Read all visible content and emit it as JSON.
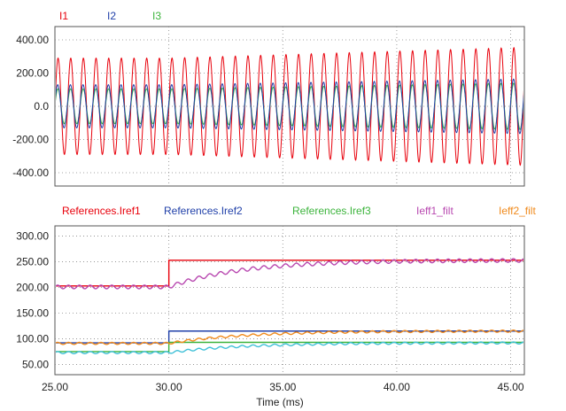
{
  "chart_data": [
    {
      "type": "line",
      "title": "",
      "xlabel": "",
      "ylabel": "",
      "xlim": [
        25,
        45.6
      ],
      "ylim": [
        -480,
        480
      ],
      "yticks": [
        "400.00",
        "200.00",
        "0.0",
        "-200.00",
        "-400.00"
      ],
      "ytick_values": [
        400,
        200,
        0,
        -200,
        -400
      ],
      "xticks": [],
      "xgrid_values": [
        30,
        35,
        40,
        45
      ],
      "grid": true,
      "legend_position": "top-left",
      "signal_frequency_hz": 1800,
      "series": [
        {
          "name": "I1",
          "color": "#e8000b",
          "kind": "sine",
          "amplitude_before": 290,
          "amplitude_after": 355,
          "phase_deg": 0
        },
        {
          "name": "I2",
          "color": "#1f3fa8",
          "kind": "sine",
          "amplitude_before": 130,
          "amplitude_after": 165,
          "phase_deg": 10
        },
        {
          "name": "I3",
          "color": "#3cb43c",
          "kind": "sine",
          "amplitude_before": 105,
          "amplitude_after": 140,
          "phase_deg": 5
        }
      ]
    },
    {
      "type": "line",
      "title": "",
      "xlabel": "Time (ms)",
      "ylabel": "",
      "xlim": [
        25,
        45.6
      ],
      "ylim": [
        30,
        320
      ],
      "yticks": [
        "300.00",
        "250.00",
        "200.00",
        "150.00",
        "100.00",
        "50.00"
      ],
      "ytick_values": [
        300,
        250,
        200,
        150,
        100,
        50
      ],
      "xticks": [
        "25.00",
        "30.00",
        "35.00",
        "40.00",
        "45.00"
      ],
      "xtick_values": [
        25,
        30,
        35,
        40,
        45
      ],
      "grid": true,
      "legend_position": "top",
      "step_time": 30,
      "series": [
        {
          "name": "References.Iref1",
          "color": "#e8000b",
          "kind": "step",
          "before": 203,
          "after": 253
        },
        {
          "name": "References.Iref2",
          "color": "#1f3fa8",
          "kind": "step",
          "before": 92,
          "after": 115
        },
        {
          "name": "References.Iref3",
          "color": "#3cb43c",
          "kind": "step",
          "before": 75,
          "after": 93
        },
        {
          "name": "Ieff1_filt",
          "color": "#b848b0",
          "kind": "filtered",
          "before": 201,
          "after": 253,
          "ripple": 3.5
        },
        {
          "name": "Ieff2_filt",
          "color": "#f08a1c",
          "kind": "filtered",
          "before": 91,
          "after": 115,
          "ripple": 2
        },
        {
          "name": "",
          "color": "#3fc0d8",
          "kind": "filtered",
          "before": 73,
          "after": 92,
          "ripple": 2
        }
      ]
    }
  ]
}
